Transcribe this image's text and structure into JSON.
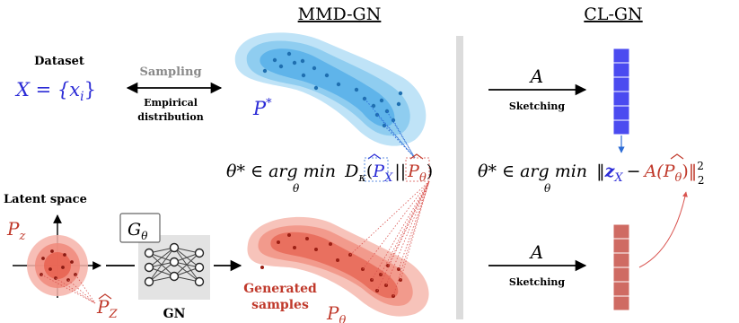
{
  "headers": {
    "mmd": "MMD-GN",
    "cl": "CL-GN"
  },
  "dataset": {
    "label": "Dataset",
    "formula": "X = {x",
    "formula_sub": "i",
    "formula_close": "}"
  },
  "sampling": {
    "label": "Sampling",
    "empirical_line1": "Empirical",
    "empirical_line2": "distribution"
  },
  "p_star": {
    "symbol": "P",
    "sup": "*"
  },
  "sketch_operator": "A",
  "sketching_label": "Sketching",
  "mmd_objective": {
    "lhs": "θ* ∈ arg min",
    "min_sub": "θ",
    "d": "D",
    "d_sub": "κ",
    "p_x": "P",
    "p_x_sub": "X",
    "sep": "||",
    "p_theta": "P",
    "p_theta_sub": "θ",
    "close": ")"
  },
  "cl_objective": {
    "lhs": "θ* ∈ arg min",
    "min_sub": "θ",
    "norm_open": "‖",
    "z": "z",
    "z_sub": "X",
    "minus": "−",
    "a": "A(",
    "p": "P",
    "p_sub": "θ",
    "close": ")‖",
    "sup": "2",
    "sub": "2"
  },
  "latent": {
    "label": "Latent space",
    "pz": "P",
    "pz_sub": "z",
    "pz_hat": "P",
    "pz_hat_sub": "Z"
  },
  "generator": {
    "symbol": "G",
    "symbol_sub": "θ",
    "label": "GN"
  },
  "generated": {
    "line1": "Generated",
    "line2": "samples",
    "p_theta": "P",
    "p_theta_sub": "θ"
  },
  "colors": {
    "blue": "#2b2bd6",
    "blue_sketch": "#4b4bf0",
    "red": "#c0392b",
    "red_sketch": "#cf6b63",
    "gray_text": "#8a8a8a",
    "divider": "#d9d9d9"
  }
}
